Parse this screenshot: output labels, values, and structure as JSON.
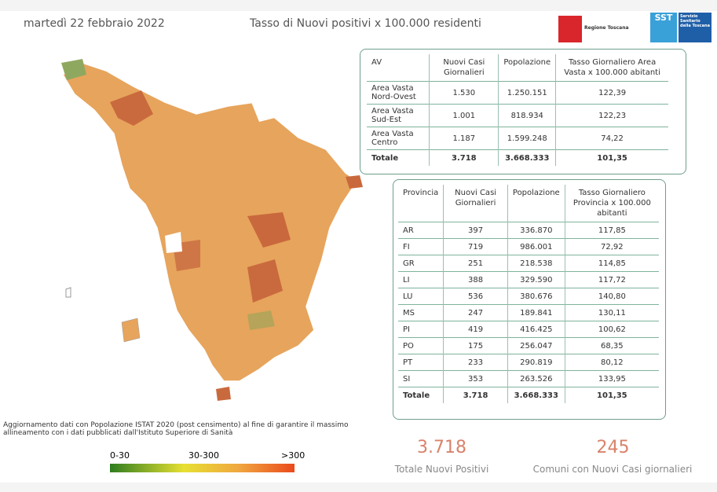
{
  "header": {
    "date": "martedì 22 febbraio 2022",
    "title": "Tasso di Nuovi positivi x 100.000 residenti",
    "logo_left": "Regione Toscana",
    "logo_right_short": "SST",
    "logo_right": "Servizio Sanitario della Toscana"
  },
  "table_av": {
    "columns": [
      "AV",
      "Nuovi Casi Giornalieri",
      "Popolazione",
      "Tasso Giornaliero Area Vasta x 100.000 abitanti"
    ],
    "rows": [
      [
        "Area Vasta Nord-Ovest",
        "1.530",
        "1.250.151",
        "122,39"
      ],
      [
        "Area Vasta Sud-Est",
        "1.001",
        "818.934",
        "122,23"
      ],
      [
        "Area Vasta Centro",
        "1.187",
        "1.599.248",
        "74,22"
      ]
    ],
    "total": [
      "Totale",
      "3.718",
      "3.668.333",
      "101,35"
    ]
  },
  "table_provincia": {
    "columns": [
      "Provincia",
      "Nuovi Casi Giornalieri",
      "Popolazione",
      "Tasso Giornaliero Provincia x 100.000 abitanti"
    ],
    "rows": [
      [
        "AR",
        "397",
        "336.870",
        "117,85"
      ],
      [
        "FI",
        "719",
        "986.001",
        "72,92"
      ],
      [
        "GR",
        "251",
        "218.538",
        "114,85"
      ],
      [
        "LI",
        "388",
        "329.590",
        "117,72"
      ],
      [
        "LU",
        "536",
        "380.676",
        "140,80"
      ],
      [
        "MS",
        "247",
        "189.841",
        "130,11"
      ],
      [
        "PI",
        "419",
        "416.425",
        "100,62"
      ],
      [
        "PO",
        "175",
        "256.047",
        "68,35"
      ],
      [
        "PT",
        "233",
        "290.819",
        "80,12"
      ],
      [
        "SI",
        "353",
        "263.526",
        "133,95"
      ]
    ],
    "total": [
      "Totale",
      "3.718",
      "3.668.333",
      "101,35"
    ]
  },
  "footnote": "Aggiornamento dati con Popolazione ISTAT 2020 (post censimento) al fine di garantire il massimo allineamento con i dati pubblicati dall'Istituto Superiore di Sanità",
  "legend": [
    "0-30",
    "30-300",
    ">300"
  ],
  "kpis": [
    {
      "value": "3.718",
      "label": "Totale Nuovi Positivi"
    },
    {
      "value": "245",
      "label": "Comuni con Nuovi Casi giornalieri"
    }
  ]
}
